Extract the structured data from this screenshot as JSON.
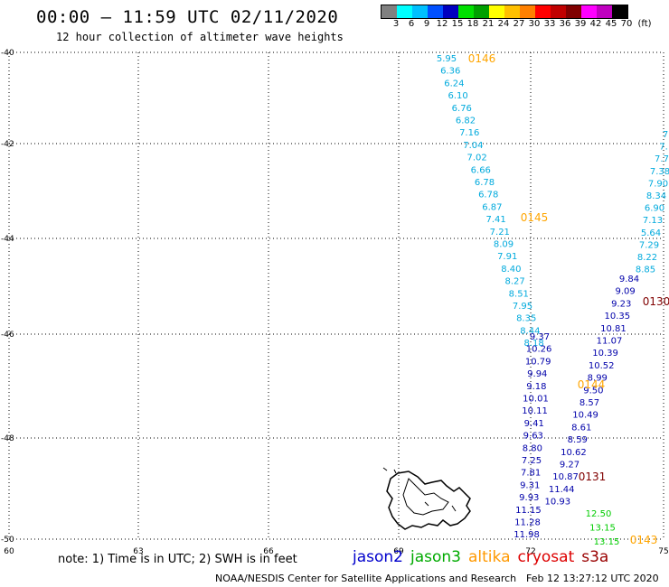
{
  "header": {
    "title": "00:00 – 11:59 UTC 02/11/2020",
    "subtitle": "12 hour collection of altimeter wave heights"
  },
  "colorbar": {
    "unit_label": "(ft)",
    "labels": [
      "3",
      "6",
      "9",
      "12",
      "15",
      "18",
      "21",
      "24",
      "27",
      "30",
      "33",
      "36",
      "39",
      "42",
      "45",
      "70"
    ],
    "colors": [
      "#808080",
      "#00ffff",
      "#00c0ff",
      "#0050ff",
      "#0000c0",
      "#00e000",
      "#00a000",
      "#ffff00",
      "#ffc000",
      "#ff8000",
      "#ff0000",
      "#c00000",
      "#800000",
      "#ff00ff",
      "#c000c0",
      "#000000"
    ]
  },
  "map": {
    "lat_labels": [
      "-40",
      "-42",
      "-44",
      "-46",
      "-48",
      "-50"
    ],
    "lon_labels": [
      "60",
      "63",
      "66",
      "69",
      "72",
      "75"
    ],
    "pass_labels": [
      {
        "text": "0146",
        "color": "#ffa500"
      },
      {
        "text": "0145",
        "color": "#ffa500"
      },
      {
        "text": "0130",
        "color": "#800000"
      },
      {
        "text": "0144",
        "color": "#ffa500"
      },
      {
        "text": "0131",
        "color": "#800000"
      },
      {
        "text": "0143",
        "color": "#ffa500"
      }
    ],
    "track_a": {
      "color": "#00aadd",
      "values": [
        "5.95",
        "6.36",
        "6.24",
        "6.10",
        "6.76",
        "6.82",
        "7.16",
        "7.04",
        "7.02",
        "6.66",
        "6.78",
        "6.78",
        "6.87",
        "7.41",
        "7.21",
        "8.09",
        "7.91",
        "8.40",
        "8.27",
        "8.51",
        "7.95",
        "8.35",
        "8.44",
        "8.18"
      ]
    },
    "track_a_dark": {
      "color": "#0000aa",
      "values": [
        "9.37",
        "10.26",
        "10.79",
        "9.94",
        "9.18",
        "10.01",
        "10.11",
        "9.41",
        "9.63",
        "8.80",
        "7.25",
        "7.81",
        "9.31",
        "9.93",
        "11.15",
        "11.28",
        "11.98"
      ]
    },
    "track_b": {
      "color": "#00aadd",
      "values": [
        "7",
        "7.",
        "7.7",
        "7.38",
        "7.90",
        "8.34",
        "6.90",
        "7.13",
        "5.64",
        "7.29",
        "8.22",
        "8.85"
      ]
    },
    "track_b_dark": {
      "color": "#0000aa",
      "values": [
        "9.84",
        "9.09",
        "9.23",
        "10.35",
        "10.81",
        "11.07",
        "10.39",
        "10.52",
        "8.99",
        "9.50",
        "8.57",
        "10.49",
        "8.61",
        "8.59",
        "10.62",
        "9.27",
        "10.87",
        "11.44",
        "10.93"
      ]
    },
    "track_b_green": {
      "color": "#00cc00",
      "values": [
        "12.50",
        "13.15",
        "13.15"
      ]
    }
  },
  "footer": {
    "note": "note: 1) Time is in UTC; 2) SWH is in feet",
    "legend": [
      {
        "name": "jason2",
        "color": "#0000cc"
      },
      {
        "name": "jason3",
        "color": "#00aa00"
      },
      {
        "name": "altika",
        "color": "#ff9900"
      },
      {
        "name": "cryosat",
        "color": "#dd0000"
      },
      {
        "name": "s3a",
        "color": "#990000"
      }
    ],
    "credit": "NOAA/NESDIS Center for Satellite Applications and Research",
    "timestamp": "Feb 12 13:27:12 UTC 2020"
  }
}
